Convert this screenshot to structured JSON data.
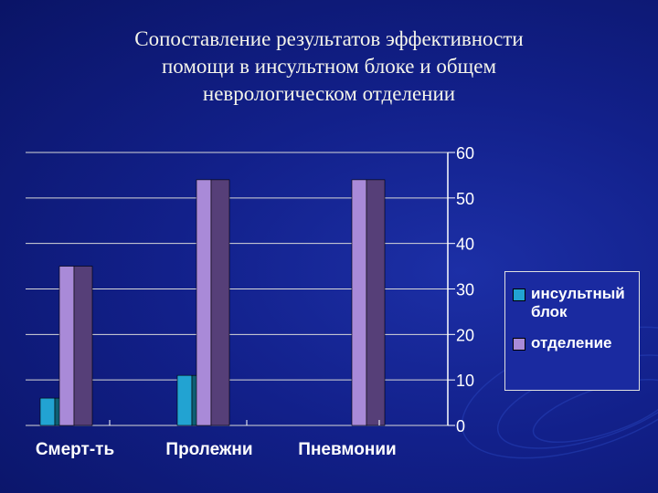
{
  "title_lines": [
    "Сопоставление результатов эффективности",
    "помощи в инсультном блоке и общем",
    "неврологическом отделении"
  ],
  "colors": {
    "series1_front": "#22a3d2",
    "series1_side": "#0e5e74",
    "series2_front": "#a98ad8",
    "series2_side": "#563f78",
    "text": "#ffffff"
  },
  "chart_data": {
    "type": "bar",
    "categories": [
      "Смерт-ть",
      "Пролежни",
      "Пневмонии"
    ],
    "series": [
      {
        "name": "инсультный блок",
        "values": [
          6,
          11,
          0
        ]
      },
      {
        "name": "отделение",
        "values": [
          35,
          54,
          54
        ]
      }
    ],
    "ylim": [
      0,
      60
    ],
    "yticks": [
      "0",
      "10",
      "20",
      "30",
      "40",
      "50",
      "60"
    ],
    "grid": true,
    "legend": "right",
    "style": "3d-columns"
  }
}
